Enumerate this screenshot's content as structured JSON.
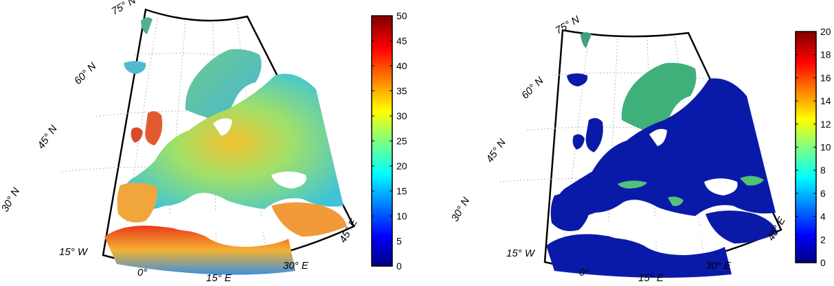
{
  "maps": [
    {
      "id": "left",
      "lat_labels": [
        "75° N",
        "60° N",
        "45° N",
        "30° N"
      ],
      "lon_labels": [
        "15° W",
        "0°",
        "15° E",
        "30° E",
        "45° E"
      ],
      "colorbar": {
        "min": 0,
        "max": 50,
        "ticks": [
          "0",
          "5",
          "10",
          "15",
          "20",
          "25",
          "30",
          "35",
          "40",
          "45",
          "50"
        ],
        "colormap": "jet"
      }
    },
    {
      "id": "right",
      "lat_labels": [
        "75° N",
        "60° N",
        "45° N",
        "30° N"
      ],
      "lon_labels": [
        "15° W",
        "0°",
        "15° E",
        "30° E",
        "45° E"
      ],
      "colorbar": {
        "min": 0,
        "max": 20,
        "ticks": [
          "0",
          "2",
          "4",
          "6",
          "8",
          "10",
          "12",
          "14",
          "16",
          "18",
          "20"
        ],
        "colormap": "jet"
      }
    }
  ]
}
